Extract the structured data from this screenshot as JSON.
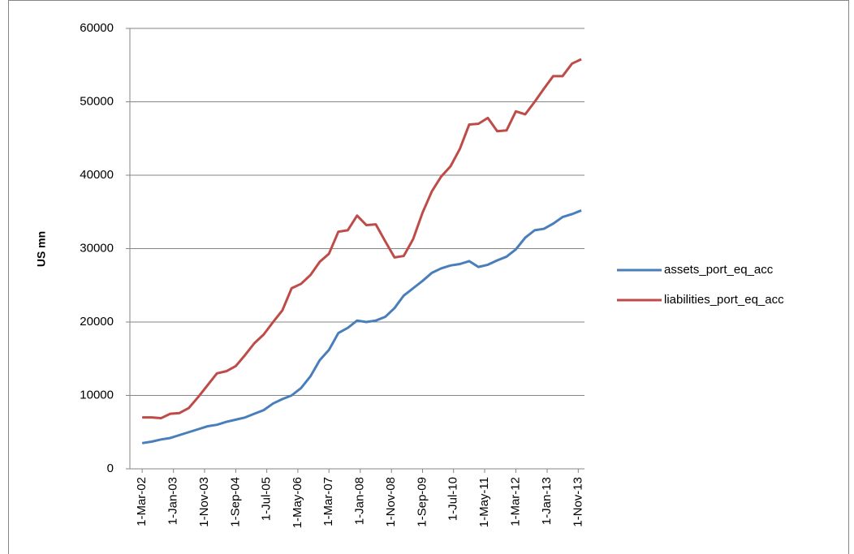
{
  "chart_data": {
    "type": "line",
    "y_label": "US mn",
    "x": [
      "2002-03-01",
      "2002-06-01",
      "2002-09-01",
      "2002-12-01",
      "2003-03-01",
      "2003-06-01",
      "2003-09-01",
      "2003-12-01",
      "2004-03-01",
      "2004-06-01",
      "2004-09-01",
      "2004-12-01",
      "2005-03-01",
      "2005-06-01",
      "2005-09-01",
      "2005-12-01",
      "2006-03-01",
      "2006-06-01",
      "2006-09-01",
      "2006-12-01",
      "2007-03-01",
      "2007-06-01",
      "2007-09-01",
      "2007-12-01",
      "2008-03-01",
      "2008-06-01",
      "2008-09-01",
      "2008-12-01",
      "2009-03-01",
      "2009-06-01",
      "2009-09-01",
      "2009-12-01",
      "2010-03-01",
      "2010-06-01",
      "2010-09-01",
      "2010-12-01",
      "2011-03-01",
      "2011-06-01",
      "2011-09-01",
      "2011-12-01",
      "2012-03-01",
      "2012-06-01",
      "2012-09-01",
      "2012-12-01",
      "2013-03-01",
      "2013-06-01",
      "2013-09-01",
      "2013-12-01"
    ],
    "series": [
      {
        "name": "assets_port_eq_acc",
        "color": "#4a7ebb",
        "values": [
          3500,
          3700,
          4000,
          4200,
          4600,
          5000,
          5400,
          5800,
          6000,
          6400,
          6700,
          7000,
          7500,
          8000,
          8900,
          9500,
          10000,
          11000,
          12600,
          14800,
          16200,
          18500,
          19200,
          20200,
          20000,
          20200,
          20700,
          21900,
          23600,
          24600,
          25600,
          26700,
          27300,
          27700,
          27900,
          28300,
          27500,
          27800,
          28400,
          28900,
          29900,
          31500,
          32500,
          32700,
          33400,
          34300,
          34700,
          35200
        ]
      },
      {
        "name": "liabilities_port_eq_acc",
        "color": "#be4b48",
        "values": [
          7000,
          7000,
          6900,
          7500,
          7600,
          8300,
          9800,
          11400,
          13000,
          13300,
          14000,
          15500,
          17100,
          18300,
          20000,
          21600,
          24600,
          25200,
          26400,
          28200,
          29300,
          32300,
          32500,
          34500,
          33200,
          33300,
          31000,
          28800,
          29000,
          31300,
          34900,
          37800,
          39800,
          41200,
          43600,
          46900,
          47000,
          47800,
          46000,
          46100,
          48700,
          48300,
          50000,
          51800,
          53500,
          53500,
          55200,
          55800
        ]
      }
    ],
    "xlim": [
      "2001-11-01",
      "2014-01-01"
    ],
    "xticks": [
      {
        "value": "2002-03-01",
        "label": "1-Mar-02"
      },
      {
        "value": "2003-01-01",
        "label": "1-Jan-03"
      },
      {
        "value": "2003-11-01",
        "label": "1-Nov-03"
      },
      {
        "value": "2004-09-01",
        "label": "1-Sep-04"
      },
      {
        "value": "2005-07-01",
        "label": "1-Jul-05"
      },
      {
        "value": "2006-05-01",
        "label": "1-May-06"
      },
      {
        "value": "2007-03-01",
        "label": "1-Mar-07"
      },
      {
        "value": "2008-01-01",
        "label": "1-Jan-08"
      },
      {
        "value": "2008-11-01",
        "label": "1-Nov-08"
      },
      {
        "value": "2009-09-01",
        "label": "1-Sep-09"
      },
      {
        "value": "2010-07-01",
        "label": "1-Jul-10"
      },
      {
        "value": "2011-05-01",
        "label": "1-May-11"
      },
      {
        "value": "2012-03-01",
        "label": "1-Mar-12"
      },
      {
        "value": "2013-01-01",
        "label": "1-Jan-13"
      },
      {
        "value": "2013-11-01",
        "label": "1-Nov-13"
      }
    ],
    "ylim": [
      0,
      60000
    ],
    "yticks": [
      0,
      10000,
      20000,
      30000,
      40000,
      50000,
      60000
    ],
    "grid": true,
    "legend": "right"
  }
}
